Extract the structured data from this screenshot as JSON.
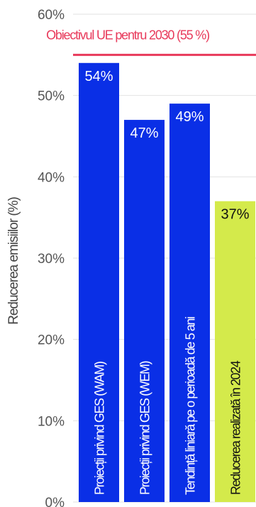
{
  "chart_data": {
    "type": "bar",
    "ylabel": "Reducerea emisiilor (%)",
    "ylim": [
      0,
      60
    ],
    "yticks": [
      "0%",
      "10%",
      "20%",
      "30%",
      "40%",
      "50%",
      "60%"
    ],
    "grid": true,
    "target": {
      "label": "Obiectivul UE pentru 2030  (55 %)",
      "value": 55,
      "color": "#e8395a"
    },
    "bars": [
      {
        "category": "Proiecții privind GES (WAM)",
        "value": 54,
        "value_label": "54%",
        "color": "#0a2fe6",
        "text_color": "#ffffff"
      },
      {
        "category": "Proiecții privind GES (WEM)",
        "value": 47,
        "value_label": "47%",
        "color": "#0a2fe6",
        "text_color": "#ffffff"
      },
      {
        "category": "Tendință liniară pe o perioadă de 5 ani",
        "value": 49,
        "value_label": "49%",
        "color": "#0a2fe6",
        "text_color": "#ffffff"
      },
      {
        "category": "Reducerea realizată în 2024",
        "value": 37,
        "value_label": "37%",
        "color": "#d4ea4b",
        "text_color": "#111111"
      }
    ]
  }
}
